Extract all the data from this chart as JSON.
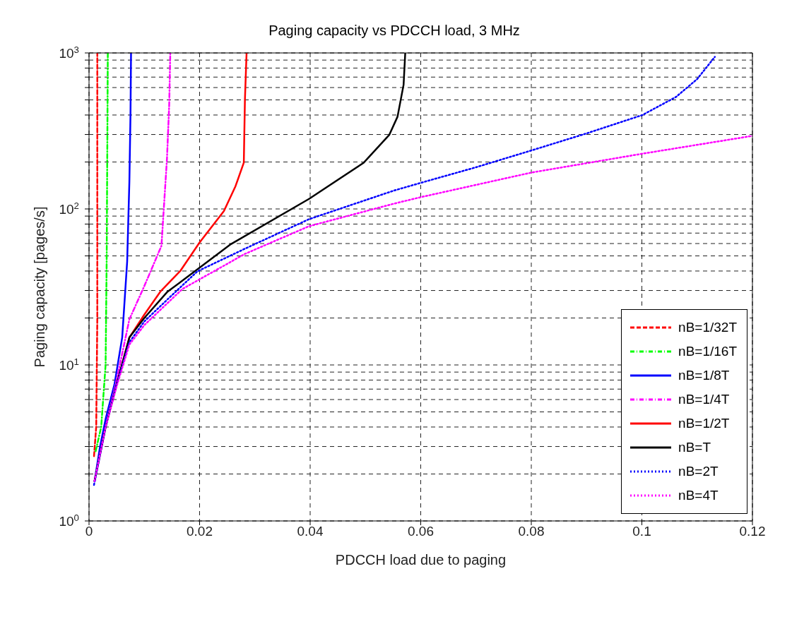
{
  "chart_data": {
    "type": "line",
    "title": "Paging capacity vs PDCCH load, 3 MHz",
    "xlabel": "PDCCH load due to paging",
    "ylabel": "Paging capacity [pages/s]",
    "log": "y",
    "grid": true,
    "legend": "bottom right",
    "marker": "none",
    "xlim": [
      0,
      0.12
    ],
    "xticks": [
      0,
      0.02,
      0.04,
      0.06,
      0.08,
      0.1,
      0.12
    ],
    "ylim": [
      1,
      1000
    ],
    "yticks": [
      {
        "value": 1,
        "label": "10$^{0}$"
      },
      {
        "value": 2,
        "label": null
      },
      {
        "value": 3,
        "label": null
      },
      {
        "value": 4,
        "label": null
      },
      {
        "value": 5,
        "label": null
      },
      {
        "value": 6,
        "label": null
      },
      {
        "value": 7,
        "label": null
      },
      {
        "value": 8,
        "label": null
      },
      {
        "value": 9,
        "label": null
      },
      {
        "value": 10,
        "label": "10$^{1}$"
      },
      {
        "value": 20,
        "label": null
      },
      {
        "value": 30,
        "label": null
      },
      {
        "value": 40,
        "label": null
      },
      {
        "value": 50,
        "label": null
      },
      {
        "value": 60,
        "label": null
      },
      {
        "value": 70,
        "label": null
      },
      {
        "value": 80,
        "label": null
      },
      {
        "value": 90,
        "label": null
      },
      {
        "value": 100,
        "label": "10$^{2}$"
      },
      {
        "value": 200,
        "label": null
      },
      {
        "value": 300,
        "label": null
      },
      {
        "value": 400,
        "label": null
      },
      {
        "value": 500,
        "label": null
      },
      {
        "value": 600,
        "label": null
      },
      {
        "value": 700,
        "label": null
      },
      {
        "value": 800,
        "label": null
      },
      {
        "value": 900,
        "label": null
      },
      {
        "value": 1000,
        "label": "10$^{3}$"
      }
    ],
    "series": [
      {
        "name": "nB=1/32T",
        "color": "#ff0000",
        "line_style": "dashed",
        "x": [
          0.0009,
          0.0013,
          0.0015,
          0.0015
        ],
        "values": [
          2.6,
          4,
          20,
          1000
        ]
      },
      {
        "name": "nB=1/16T",
        "color": "#00ff00",
        "line_style": "dashdot",
        "x": [
          0.0012,
          0.0022,
          0.003,
          0.0032,
          0.0034
        ],
        "values": [
          2.8,
          4,
          10,
          50,
          1000
        ]
      },
      {
        "name": "nB=1/8T",
        "color": "#0000ff",
        "line_style": "solid",
        "x": [
          0.001,
          0.002,
          0.003,
          0.0046,
          0.006,
          0.0069,
          0.0073,
          0.0075,
          0.0076
        ],
        "values": [
          1.8,
          3,
          4.5,
          7.5,
          15,
          46,
          150,
          400,
          1000
        ]
      },
      {
        "name": "nB=1/4T",
        "color": "#ff00ff",
        "line_style": "dashdot",
        "x": [
          0.001,
          0.003,
          0.005,
          0.0073,
          0.01,
          0.0131,
          0.0141,
          0.0145,
          0.0147
        ],
        "values": [
          1.8,
          4,
          8,
          19.6,
          32,
          58,
          210,
          460,
          1000
        ]
      },
      {
        "name": "nB=1/2T",
        "color": "#ff0000",
        "line_style": "solid",
        "x": [
          0.005,
          0.0073,
          0.01,
          0.0129,
          0.0165,
          0.02,
          0.0244,
          0.0265,
          0.028,
          0.0282,
          0.0285
        ],
        "values": [
          7.5,
          15,
          21,
          29.5,
          40,
          61,
          97,
          140,
          198,
          500,
          1000
        ]
      },
      {
        "name": "nB=T",
        "color": "#000000",
        "line_style": "solid",
        "x": [
          0.001,
          0.003,
          0.005,
          0.0073,
          0.01,
          0.0142,
          0.0169,
          0.0255,
          0.0398,
          0.0497,
          0.0543,
          0.0558,
          0.0569,
          0.0572
        ],
        "values": [
          1.8,
          4,
          7.5,
          15,
          20,
          29.5,
          34.7,
          59,
          116,
          198,
          298,
          390,
          625,
          1000
        ]
      },
      {
        "name": "nB=2T",
        "color": "#0000ff",
        "line_style": "dotted",
        "x": [
          0.0009,
          0.003,
          0.005,
          0.0073,
          0.01,
          0.015,
          0.0196,
          0.0282,
          0.0398,
          0.0551,
          0.06,
          0.07,
          0.08,
          0.09,
          0.1001,
          0.1062,
          0.11,
          0.1132
        ],
        "values": [
          1.7,
          4,
          7.5,
          14,
          19,
          28,
          39.8,
          55.6,
          86,
          131,
          147,
          185,
          237,
          305,
          400,
          523,
          680,
          944
        ]
      },
      {
        "name": "nB=4T",
        "color": "#ff00ff",
        "line_style": "dotted",
        "x": [
          0.001,
          0.003,
          0.005,
          0.0073,
          0.01,
          0.0169,
          0.0282,
          0.0398,
          0.0551,
          0.06,
          0.08,
          0.1001,
          0.12
        ],
        "values": [
          1.8,
          4,
          7.3,
          13.5,
          18,
          30.7,
          51.5,
          77.5,
          108,
          119,
          171,
          226,
          294
        ]
      }
    ]
  }
}
